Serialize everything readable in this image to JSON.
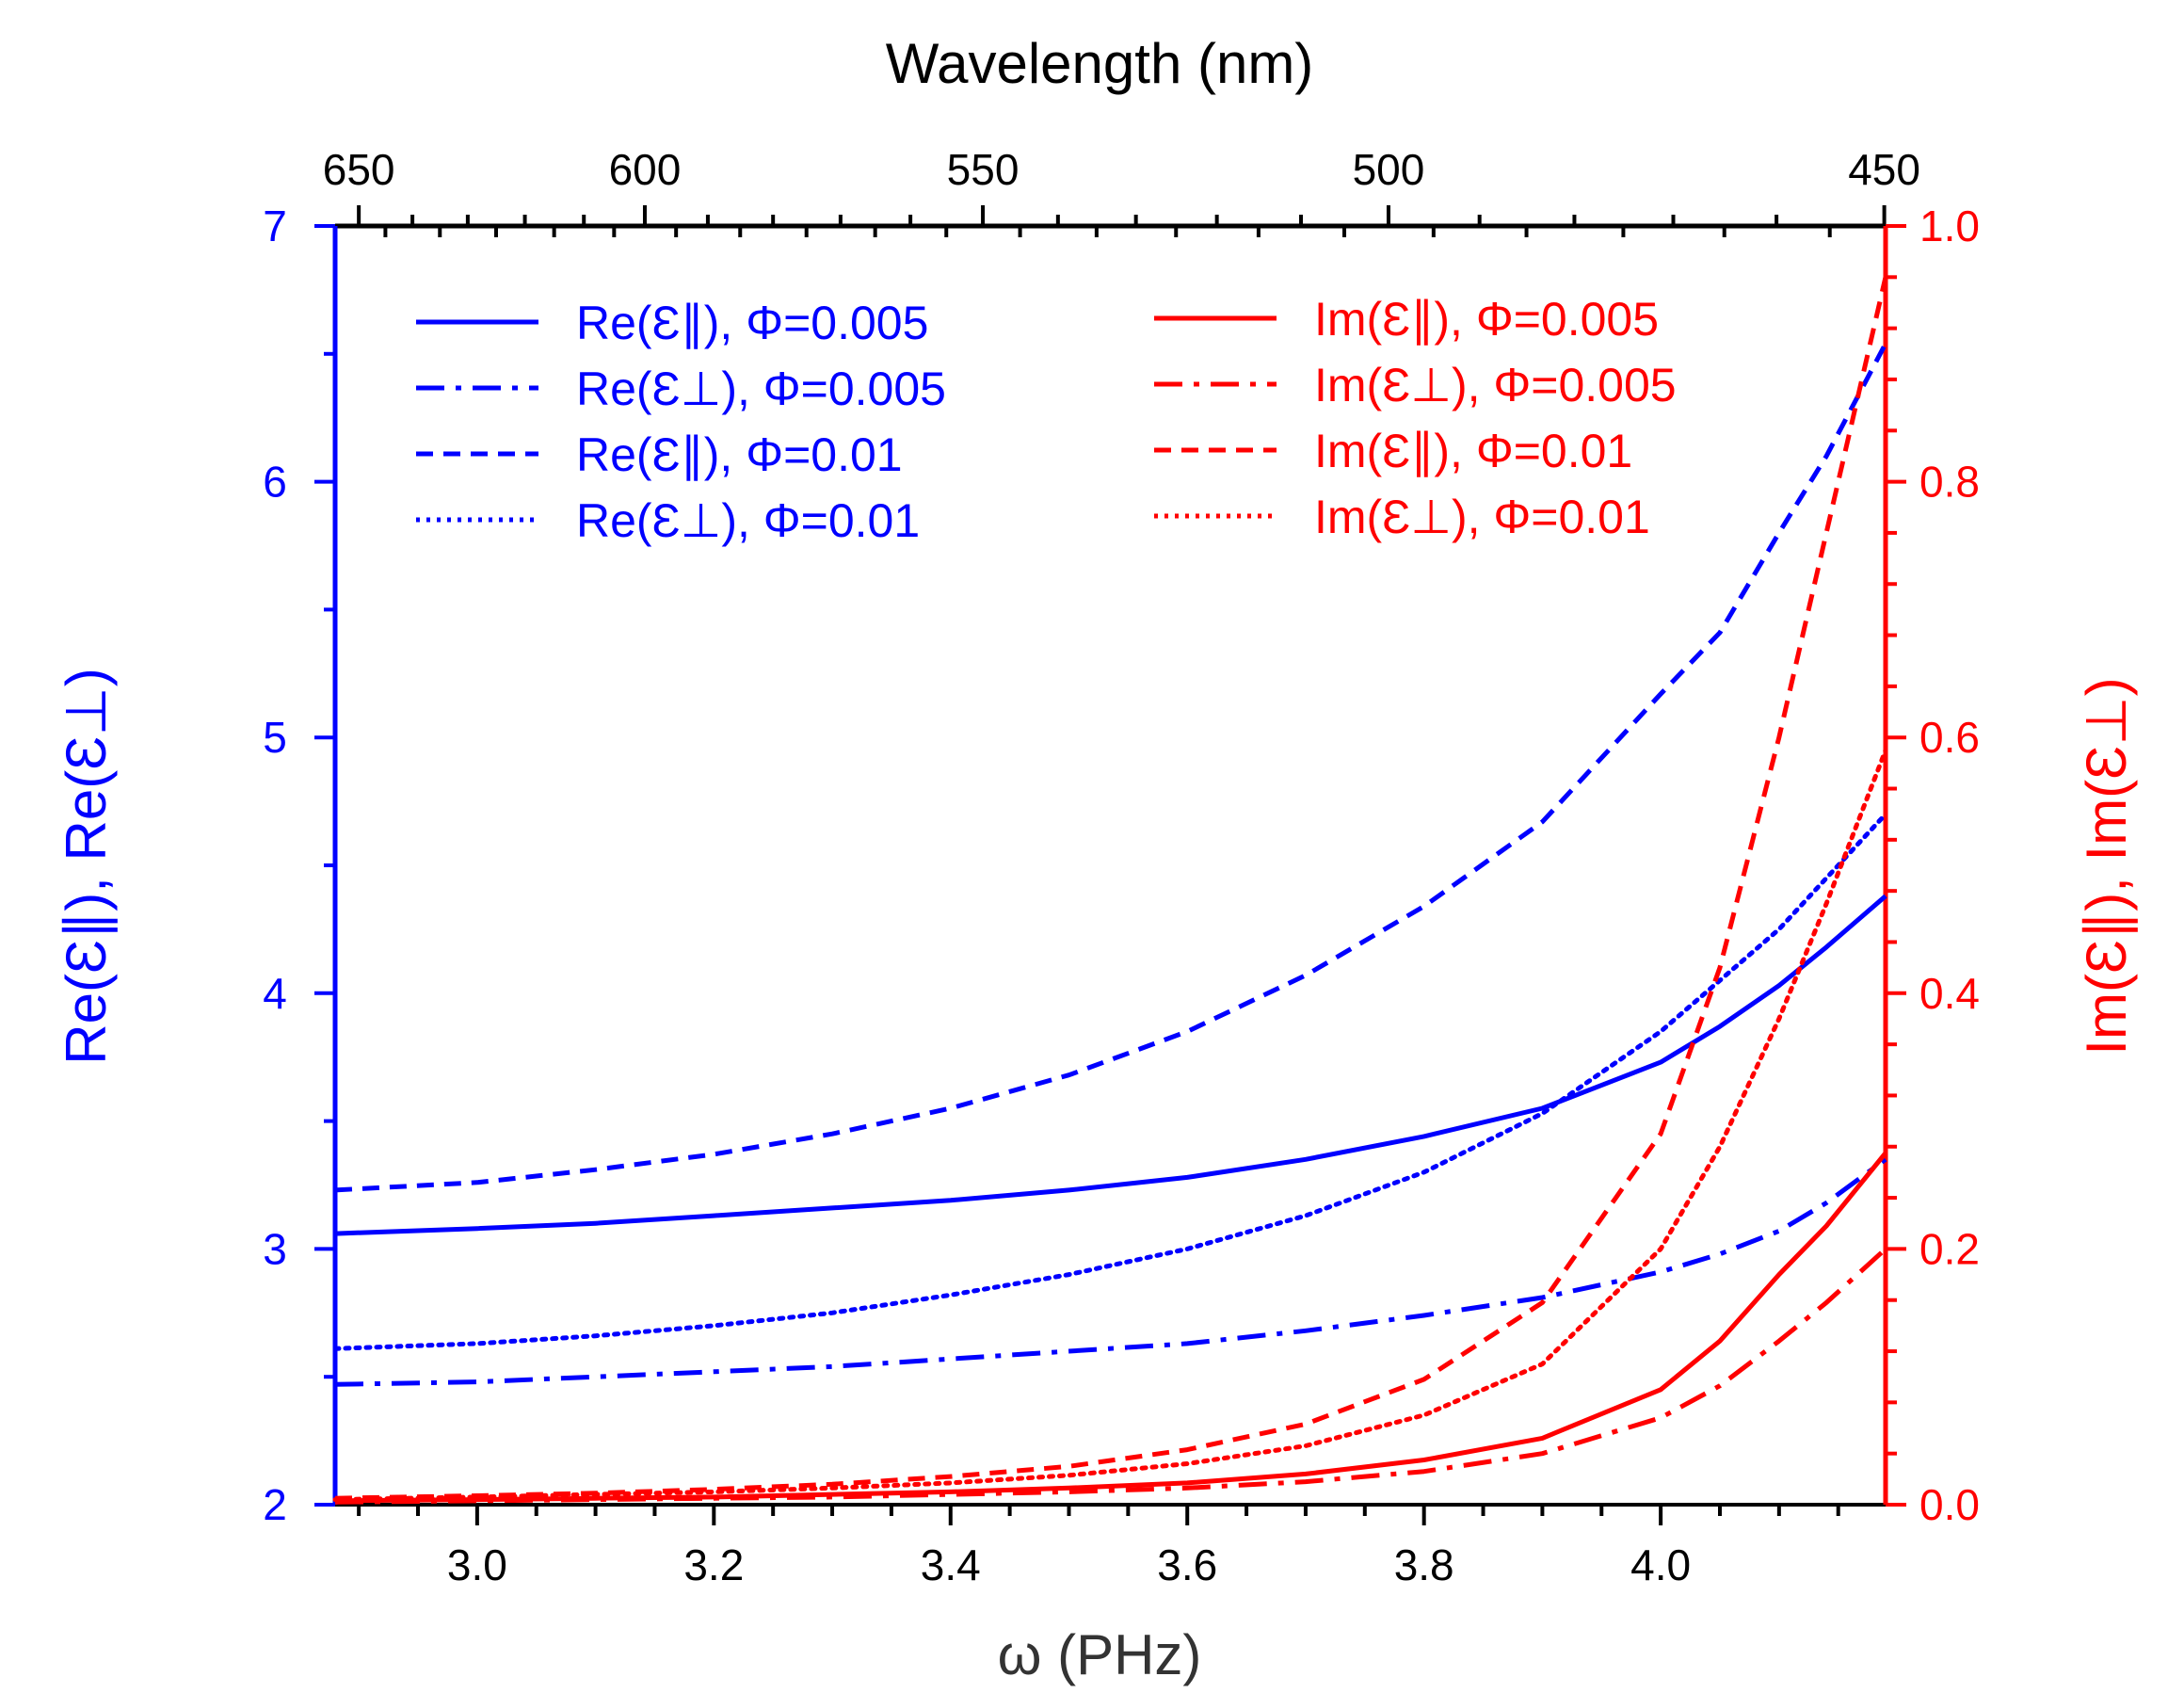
{
  "chart_data": {
    "type": "line",
    "title": "",
    "xlabel": "ω (PHz)",
    "xlim": [
      2.88,
      4.19
    ],
    "xticks": [
      "3.0",
      "3.2",
      "3.4",
      "3.6",
      "3.8",
      "4.0"
    ],
    "x_top_label": "Wavelength (nm)",
    "x_top_ticks": [
      "650",
      "600",
      "550",
      "500",
      "450"
    ],
    "ylabel_left": "Re(Ɛ∥),   Re(Ɛ⊥)",
    "ylim_left": [
      2,
      7
    ],
    "yticks_left": [
      "2",
      "3",
      "4",
      "5",
      "6",
      "7"
    ],
    "ylabel_right": "Im(Ɛ∥),   Im(Ɛ⊥)",
    "ylim_right": [
      0.0,
      1.0
    ],
    "yticks_right": [
      "0.0",
      "0.2",
      "0.4",
      "0.6",
      "0.8",
      "1.0"
    ],
    "left_axis_color": "#0000ff",
    "right_axis_color": "#ff0000",
    "x": [
      2.88,
      3.0,
      3.1,
      3.2,
      3.3,
      3.4,
      3.5,
      3.6,
      3.7,
      3.8,
      3.9,
      4.0,
      4.05,
      4.1,
      4.14,
      4.19
    ],
    "series": [
      {
        "name": "Re(Ɛ∥), Φ=0.005",
        "axis": "left",
        "color": "#0000ff",
        "style": "solid",
        "values": [
          3.06,
          3.08,
          3.1,
          3.13,
          3.16,
          3.19,
          3.23,
          3.28,
          3.35,
          3.44,
          3.55,
          3.73,
          3.87,
          4.03,
          4.18,
          4.38
        ]
      },
      {
        "name": "Re(Ɛ⊥), Φ=0.005",
        "axis": "left",
        "color": "#0000ff",
        "style": "dashdot",
        "values": [
          2.47,
          2.48,
          2.5,
          2.52,
          2.54,
          2.57,
          2.6,
          2.63,
          2.68,
          2.74,
          2.81,
          2.91,
          2.98,
          3.07,
          3.18,
          3.35
        ]
      },
      {
        "name": "Re(Ɛ∥), Φ=0.01",
        "axis": "left",
        "color": "#0000ff",
        "style": "dashed",
        "values": [
          3.23,
          3.26,
          3.31,
          3.37,
          3.45,
          3.55,
          3.68,
          3.85,
          4.07,
          4.34,
          4.67,
          5.17,
          5.41,
          5.8,
          6.1,
          6.54
        ]
      },
      {
        "name": "Re(Ɛ⊥), Φ=0.01",
        "axis": "left",
        "color": "#0000ff",
        "style": "dotted",
        "values": [
          2.61,
          2.63,
          2.66,
          2.7,
          2.75,
          2.82,
          2.9,
          3.0,
          3.13,
          3.3,
          3.53,
          3.85,
          4.05,
          4.25,
          4.45,
          4.7
        ]
      },
      {
        "name": "Im(Ɛ∥), Φ=0.005",
        "axis": "right",
        "color": "#ff0000",
        "style": "solid",
        "values": [
          0.003,
          0.004,
          0.005,
          0.006,
          0.008,
          0.01,
          0.013,
          0.017,
          0.024,
          0.035,
          0.052,
          0.09,
          0.128,
          0.18,
          0.218,
          0.275
        ]
      },
      {
        "name": "Im(Ɛ⊥), Φ=0.005",
        "axis": "right",
        "color": "#ff0000",
        "style": "dashdot",
        "values": [
          0.002,
          0.003,
          0.004,
          0.005,
          0.006,
          0.008,
          0.01,
          0.013,
          0.018,
          0.026,
          0.04,
          0.068,
          0.093,
          0.128,
          0.158,
          0.2
        ]
      },
      {
        "name": "Im(Ɛ∥), Φ=0.01",
        "axis": "right",
        "color": "#ff0000",
        "style": "dashed",
        "values": [
          0.005,
          0.007,
          0.009,
          0.012,
          0.016,
          0.022,
          0.03,
          0.043,
          0.063,
          0.098,
          0.158,
          0.29,
          0.42,
          0.6,
          0.76,
          0.96
        ]
      },
      {
        "name": "Im(Ɛ⊥), Φ=0.01",
        "axis": "right",
        "color": "#ff0000",
        "style": "dotted",
        "values": [
          0.004,
          0.006,
          0.008,
          0.01,
          0.013,
          0.017,
          0.023,
          0.032,
          0.046,
          0.07,
          0.11,
          0.2,
          0.28,
          0.38,
          0.47,
          0.59
        ]
      }
    ],
    "legend_left": [
      {
        "label": "Re(Ɛ∥), Φ=0.005",
        "style": "solid"
      },
      {
        "label": "Re(Ɛ⊥), Φ=0.005",
        "style": "dashdot"
      },
      {
        "label": "Re(Ɛ∥), Φ=0.01",
        "style": "dashed"
      },
      {
        "label": "Re(Ɛ⊥), Φ=0.01",
        "style": "dotted"
      }
    ],
    "legend_right": [
      {
        "label": "Im(Ɛ∥), Φ=0.005",
        "style": "solid"
      },
      {
        "label": "Im(Ɛ⊥), Φ=0.005",
        "style": "dashdot"
      },
      {
        "label": "Im(Ɛ∥), Φ=0.01",
        "style": "dashed"
      },
      {
        "label": "Im(Ɛ⊥), Φ=0.01",
        "style": "dotted"
      }
    ],
    "legend_placement": "top-left and top-center"
  }
}
